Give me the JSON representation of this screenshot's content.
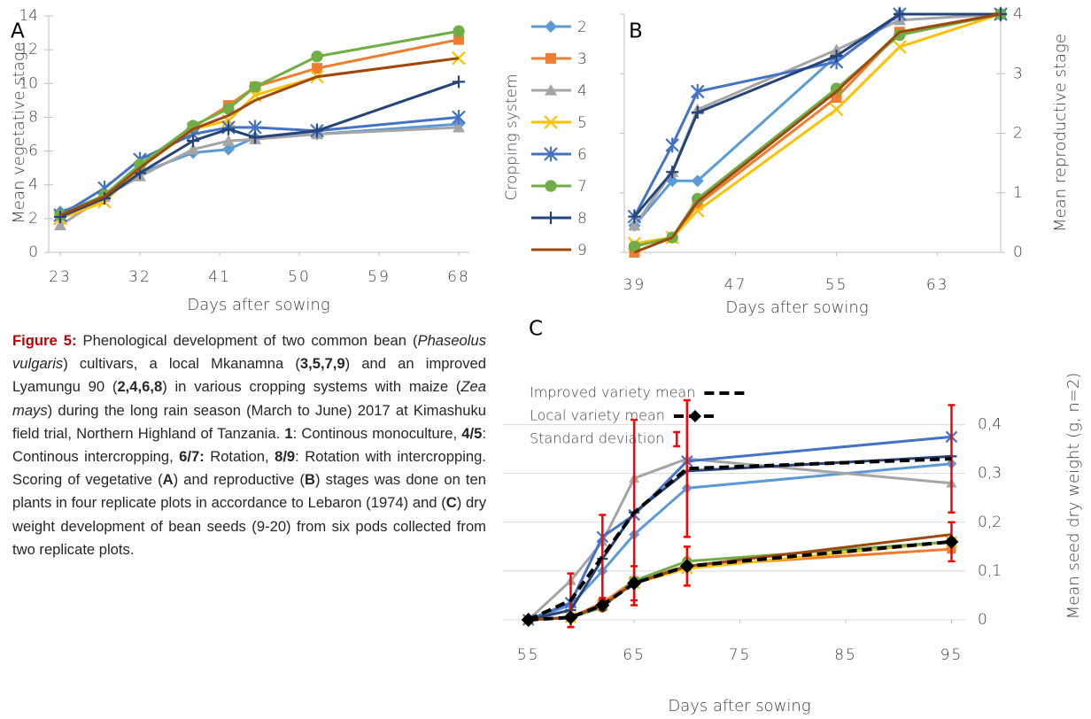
{
  "legend": {
    "title": "Cropping system",
    "items": [
      {
        "name": "2",
        "color": "#5b9bd5",
        "marker": "diamond"
      },
      {
        "name": "3",
        "color": "#ed7d31",
        "marker": "square"
      },
      {
        "name": "4",
        "color": "#a5a5a5",
        "marker": "triangle"
      },
      {
        "name": "5",
        "color": "#ffc000",
        "marker": "x"
      },
      {
        "name": "6",
        "color": "#4472c4",
        "marker": "star"
      },
      {
        "name": "7",
        "color": "#70ad47",
        "marker": "circle"
      },
      {
        "name": "8",
        "color": "#264478",
        "marker": "plus"
      },
      {
        "name": "9",
        "color": "#9e480e",
        "marker": "none"
      }
    ]
  },
  "chart_data": [
    {
      "type": "line",
      "title": "A",
      "xlabel": "Days after sowing",
      "ylabel": "Mean vegetative stage",
      "y_axis_side": "left",
      "grid": false,
      "x": [
        23,
        28,
        32,
        38,
        42,
        45,
        52,
        68
      ],
      "xlim": [
        21.7,
        69.2
      ],
      "xticks": [
        23,
        32,
        41,
        50,
        59,
        68
      ],
      "ylim": [
        0,
        14
      ],
      "yticks": [
        0,
        2,
        4,
        6,
        8,
        10,
        12,
        14
      ],
      "series": [
        {
          "values": [
            2.4,
            3.3,
            4.7,
            5.9,
            6.1,
            6.8,
            7.0,
            7.6
          ]
        },
        {
          "values": [
            2.2,
            3.3,
            5.0,
            7.4,
            8.7,
            9.8,
            10.9,
            12.6
          ]
        },
        {
          "values": [
            1.6,
            3.3,
            4.5,
            6.1,
            6.6,
            6.7,
            7.0,
            7.4
          ]
        },
        {
          "values": [
            2.0,
            3.0,
            5.0,
            7.3,
            7.8,
            9.3,
            10.4,
            11.5
          ]
        },
        {
          "values": [
            2.2,
            3.8,
            5.5,
            7.0,
            7.4,
            7.4,
            7.2,
            8.0
          ]
        },
        {
          "values": [
            2.2,
            3.4,
            5.2,
            7.5,
            8.5,
            9.8,
            11.6,
            13.1
          ]
        },
        {
          "values": [
            2.1,
            3.2,
            4.7,
            6.6,
            7.3,
            6.8,
            7.2,
            10.1
          ]
        },
        {
          "values": [
            2.2,
            3.3,
            5.0,
            7.3,
            8.1,
            9.0,
            10.4,
            11.5
          ]
        }
      ]
    },
    {
      "type": "line",
      "title": "B",
      "xlabel": "Days after sowing",
      "ylabel": "Mean reproductive stage",
      "y_axis_side": "right",
      "grid": false,
      "x": [
        39,
        42,
        44,
        55,
        60,
        68
      ],
      "xlim": [
        38.2,
        68.0
      ],
      "xticks": [
        39,
        47,
        55,
        63
      ],
      "ylim": [
        0,
        4
      ],
      "yticks": [
        0,
        1,
        2,
        3,
        4
      ],
      "series": [
        {
          "values": [
            0.45,
            1.2,
            1.2,
            3.3,
            4.0,
            4.0
          ]
        },
        {
          "values": [
            0.0,
            0.25,
            0.8,
            2.6,
            3.7,
            4.0
          ]
        },
        {
          "values": [
            0.45,
            1.35,
            2.4,
            3.4,
            3.9,
            4.0
          ]
        },
        {
          "values": [
            0.15,
            0.25,
            0.7,
            2.4,
            3.45,
            4.0
          ]
        },
        {
          "values": [
            0.6,
            1.8,
            2.7,
            3.2,
            4.0,
            4.0
          ]
        },
        {
          "values": [
            0.1,
            0.25,
            0.9,
            2.75,
            3.65,
            4.0
          ]
        },
        {
          "values": [
            0.6,
            1.35,
            2.35,
            3.3,
            4.0,
            4.0
          ]
        },
        {
          "values": [
            0.0,
            0.25,
            0.85,
            2.7,
            3.7,
            4.0
          ]
        }
      ]
    },
    {
      "type": "line",
      "title": "C",
      "xlabel": "Days after sowing",
      "ylabel": "Mean seed dry weight (g, n=2)",
      "y_axis_side": "right",
      "grid": true,
      "x": [
        55,
        59,
        62,
        65,
        70,
        95
      ],
      "xlim": [
        52.6,
        96.3
      ],
      "xticks": [
        55,
        65,
        75,
        85,
        95
      ],
      "ylim": [
        0,
        0.47
      ],
      "yticks": [
        0,
        {
          "value": 0.1,
          "label": "0,1"
        },
        {
          "value": 0.2,
          "label": "0,2"
        },
        {
          "value": 0.3,
          "label": "0,3"
        },
        {
          "value": 0.4,
          "label": "0,4"
        }
      ],
      "error_label": "Standard deviation",
      "error_color": "#ff0000",
      "series": [
        {
          "values": [
            0,
            0.03,
            0.1,
            0.175,
            0.27,
            0.32
          ]
        },
        {
          "values": [
            0,
            0.005,
            0.035,
            0.08,
            0.11,
            0.145
          ]
        },
        {
          "values": [
            0,
            0.08,
            0.16,
            0.29,
            0.33,
            0.28
          ]
        },
        {
          "values": [
            0,
            0.005,
            0.03,
            0.075,
            0.105,
            0.16
          ]
        },
        {
          "values": [
            0,
            0.035,
            0.17,
            0.215,
            0.325,
            0.375
          ]
        },
        {
          "values": [
            0,
            0.005,
            0.025,
            0.08,
            0.12,
            0.16
          ]
        },
        {
          "values": [
            0,
            0.02,
            0.125,
            0.22,
            0.305,
            0.335
          ]
        },
        {
          "values": [
            0,
            0.005,
            0.03,
            0.075,
            0.11,
            0.175
          ]
        }
      ],
      "means": [
        {
          "name": "Improved variety mean",
          "color": "#000000",
          "marker": "none",
          "values": [
            0,
            0.04,
            0.13,
            0.22,
            0.31,
            0.33
          ],
          "errors": [
            null,
            0.055,
            0.085,
            0.19,
            0.14,
            0.11
          ]
        },
        {
          "name": "Local variety mean",
          "color": "#000000",
          "marker": "diamond",
          "values": [
            0,
            0.005,
            0.03,
            0.075,
            0.11,
            0.16
          ],
          "errors": [
            null,
            null,
            0.01,
            0.035,
            0.04,
            0.04
          ]
        }
      ]
    }
  ],
  "caption": {
    "runs": [
      {
        "text": "Figure 5:",
        "style": "bold",
        "color": "#c00000"
      },
      {
        "text": " Phenological development of two common bean (",
        "style": "plain"
      },
      {
        "text": "Phaseolus vulgaris",
        "style": "italic"
      },
      {
        "text": ") cultivars, a local Mkanamna (",
        "style": "plain"
      },
      {
        "text": "3,5,7,9",
        "style": "bold"
      },
      {
        "text": ") and an improved Lyamungu 90 (",
        "style": "plain"
      },
      {
        "text": "2,4,6,8",
        "style": "bold"
      },
      {
        "text": ") in various cropping systems with maize (",
        "style": "plain"
      },
      {
        "text": "Zea mays",
        "style": "italic"
      },
      {
        "text": ") during the long rain season (March to June) 2017 at Kimashuku field trial, Northern Highland of Tanzania. ",
        "style": "plain"
      },
      {
        "text": "1",
        "style": "bold"
      },
      {
        "text": ": Continous monoculture, ",
        "style": "plain"
      },
      {
        "text": "4/5",
        "style": "bold"
      },
      {
        "text": ": Continous intercropping, ",
        "style": "plain"
      },
      {
        "text": "6/7:",
        "style": "bold"
      },
      {
        "text": " Rotation, ",
        "style": "plain"
      },
      {
        "text": "8/9",
        "style": "bold"
      },
      {
        "text": ": Rotation with intercropping.  Scoring of vegetative (",
        "style": "plain"
      },
      {
        "text": "A",
        "style": "bold"
      },
      {
        "text": ") and reproductive (",
        "style": "plain"
      },
      {
        "text": "B",
        "style": "bold"
      },
      {
        "text": ") stages was done on ten plants in four replicate plots in accordance to Lebaron (1974) and (",
        "style": "plain"
      },
      {
        "text": "C",
        "style": "bold"
      },
      {
        "text": ") dry weight development of bean seeds (9-20) from six pods collected from two replicate plots.",
        "style": "plain"
      }
    ]
  }
}
